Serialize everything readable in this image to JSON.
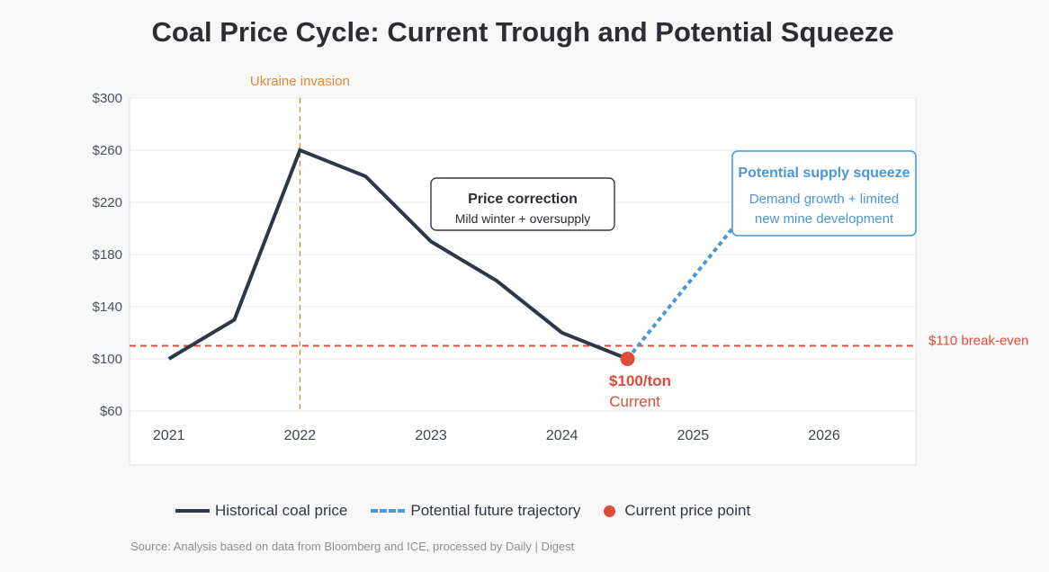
{
  "colors": {
    "historical": "#2d3748",
    "future": "#4a97d6",
    "breakeven": "#dd4b39",
    "event": "#e08a3a",
    "current_point": "#dd4b39"
  },
  "chart_data": {
    "type": "line",
    "title": "Coal Price Cycle: Current Trough and Potential Squeeze",
    "xlabel": "",
    "ylabel": "",
    "xlim": [
      2020.7,
      2026.7
    ],
    "ylim": [
      60,
      300
    ],
    "x_ticks": [
      "2021",
      "2022",
      "2023",
      "2024",
      "2025",
      "2026"
    ],
    "y_ticks": [
      "$300",
      "$260",
      "$220",
      "$180",
      "$140",
      "$100",
      "$60"
    ],
    "grid": true,
    "series": [
      {
        "name": "Historical coal price",
        "style": "solid",
        "x": [
          2021.0,
          2021.5,
          2022.0,
          2022.5,
          2023.0,
          2023.5,
          2024.0,
          2024.5
        ],
        "y": [
          100,
          130,
          260,
          240,
          190,
          160,
          120,
          100
        ]
      },
      {
        "name": "Potential future trajectory",
        "style": "dashed",
        "x": [
          2024.5,
          2025.3
        ],
        "y": [
          100,
          200
        ]
      }
    ],
    "current_point": {
      "x": 2024.5,
      "y": 100
    },
    "reference_lines": [
      {
        "type": "horizontal",
        "value": 110,
        "label": "$110 break-even"
      },
      {
        "type": "vertical",
        "value": 2022.0,
        "label": "Ukraine invasion"
      }
    ],
    "annotations": {
      "correction": {
        "title": "Price correction",
        "subtitle": "Mild winter + oversupply"
      },
      "squeeze": {
        "title": "Potential supply squeeze",
        "line1": "Demand growth + limited",
        "line2": "new mine development"
      },
      "current": {
        "value": "$100/ton",
        "label": "Current"
      }
    },
    "legend": [
      {
        "label": "Historical coal price",
        "marker": "solid-line"
      },
      {
        "label": "Potential future trajectory",
        "marker": "dashed-line"
      },
      {
        "label": "Current price point",
        "marker": "dot"
      }
    ],
    "legend_position": "bottom"
  },
  "source": "Source: Analysis based on data from Bloomberg and ICE, processed by Daily | Digest"
}
